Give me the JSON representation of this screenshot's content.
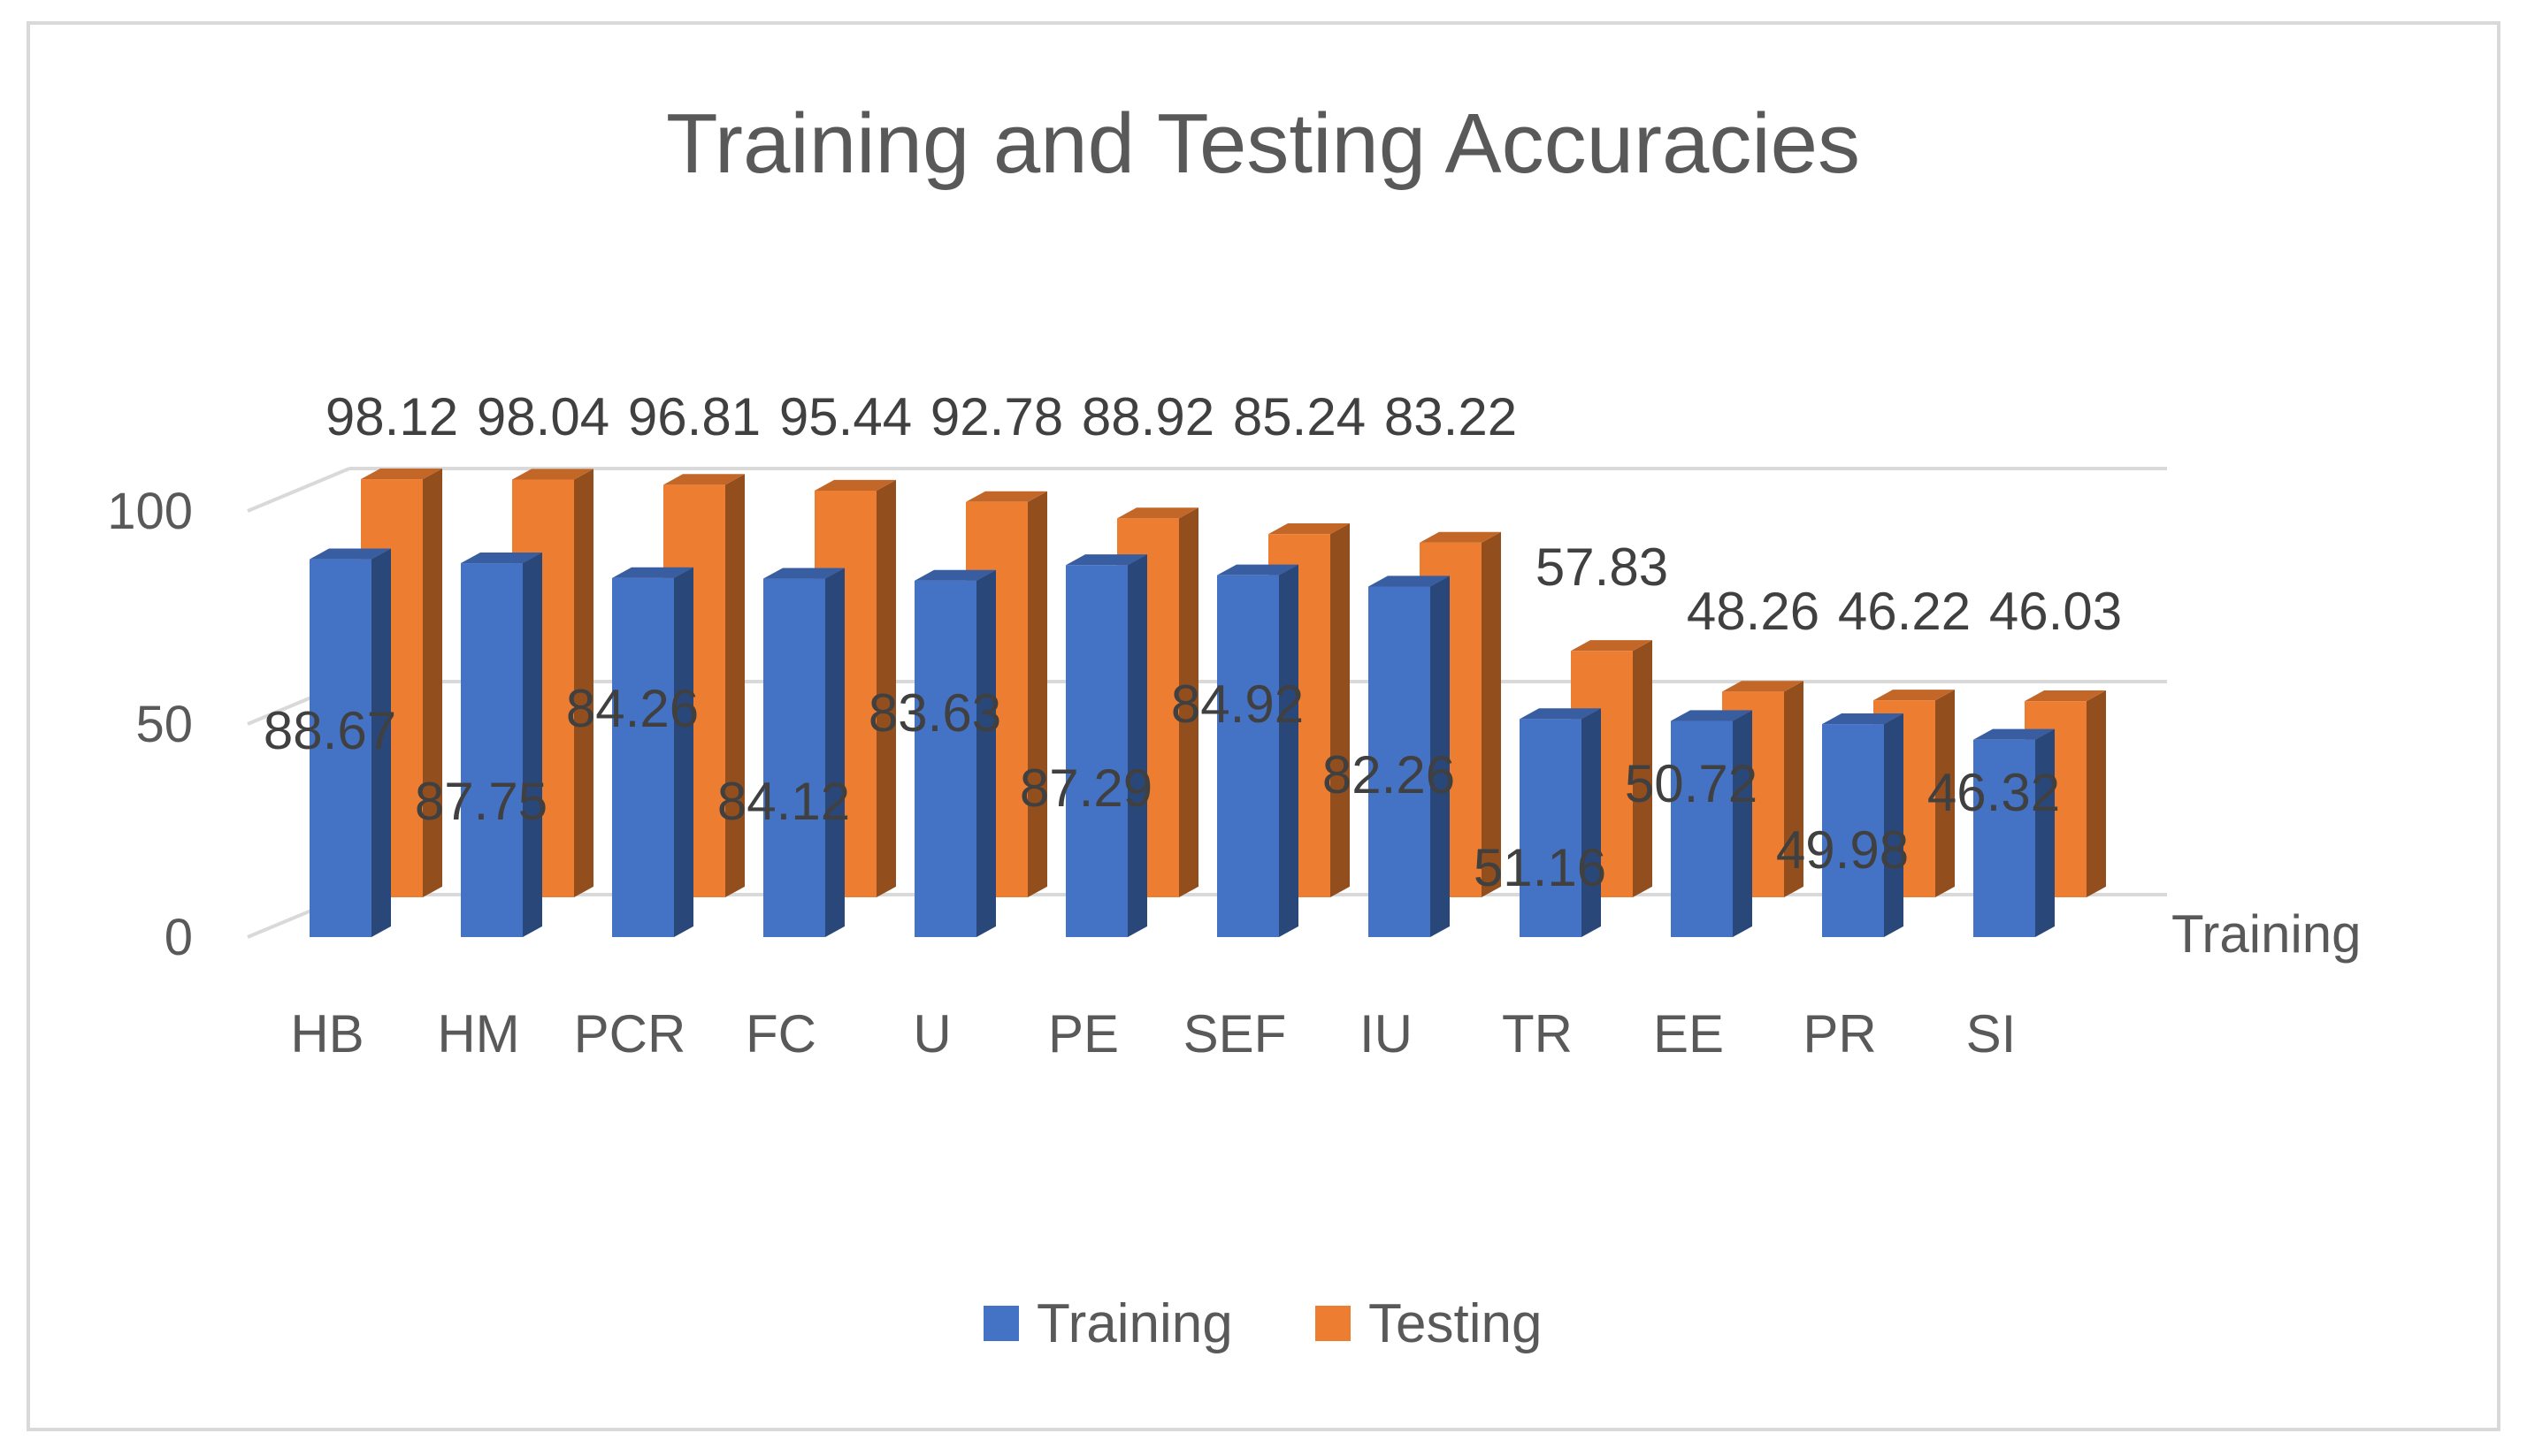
{
  "chart_data": {
    "type": "bar",
    "title": "Training and Testing Accuracies",
    "categories": [
      "HB",
      "HM",
      "PCR",
      "FC",
      "U",
      "PE",
      "SEF",
      "IU",
      "TR",
      "EE",
      "PR",
      "SI"
    ],
    "series": [
      {
        "name": "Training",
        "color": "#4472c4",
        "values": [
          88.67,
          87.75,
          84.26,
          84.12,
          83.63,
          87.29,
          84.92,
          82.26,
          51.16,
          50.72,
          49.98,
          46.32
        ],
        "labels": [
          "88.67",
          "87.75",
          "84.26",
          "84.12",
          "83.63",
          "87.29",
          "84.92",
          "82.26",
          "51.16",
          "50.72",
          "49.98",
          "46.32"
        ]
      },
      {
        "name": "Testing",
        "color": "#ed7d31",
        "values": [
          98.12,
          98.04,
          96.81,
          95.44,
          92.78,
          88.92,
          85.24,
          83.22,
          57.83,
          48.26,
          46.22,
          46.03
        ],
        "labels": [
          "98.12",
          "98.04",
          "96.81",
          "95.44",
          "92.78",
          "88.92",
          "85.24",
          "83.22",
          "57.83",
          "48.26",
          "46.22",
          "46.03"
        ]
      }
    ],
    "y_ticks": [
      "0",
      "50",
      "100"
    ],
    "ylim": [
      0,
      100
    ],
    "depth_axis_label": "Training",
    "legend": {
      "position": "bottom",
      "items": [
        "Training",
        "Testing"
      ]
    },
    "grid": true,
    "style": "3d-column"
  }
}
